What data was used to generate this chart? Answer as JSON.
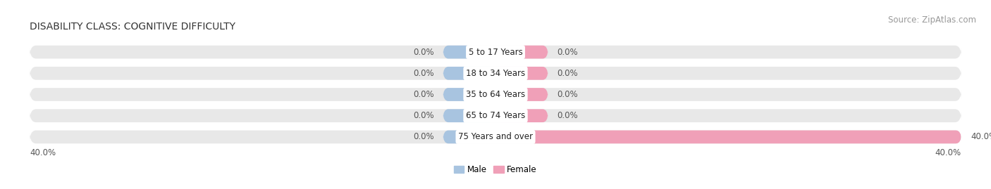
{
  "title": "DISABILITY CLASS: COGNITIVE DIFFICULTY",
  "source": "Source: ZipAtlas.com",
  "categories": [
    "5 to 17 Years",
    "18 to 34 Years",
    "35 to 64 Years",
    "65 to 74 Years",
    "75 Years and over"
  ],
  "male_values": [
    0.0,
    0.0,
    0.0,
    0.0,
    0.0
  ],
  "female_values": [
    0.0,
    0.0,
    0.0,
    0.0,
    40.0
  ],
  "xlim": [
    -40,
    40
  ],
  "x_left_label": "40.0%",
  "x_right_label": "40.0%",
  "male_color": "#a8c4e0",
  "female_color": "#f0a0b8",
  "bar_bg_color": "#e8e8e8",
  "min_bar_width": 4.5,
  "bar_height": 0.62,
  "label_fontsize": 8.5,
  "title_fontsize": 10,
  "source_fontsize": 8.5,
  "legend_male": "Male",
  "legend_female": "Female",
  "value_label_color": "#555555",
  "category_label_color": "#222222",
  "bg_color": "#ffffff"
}
